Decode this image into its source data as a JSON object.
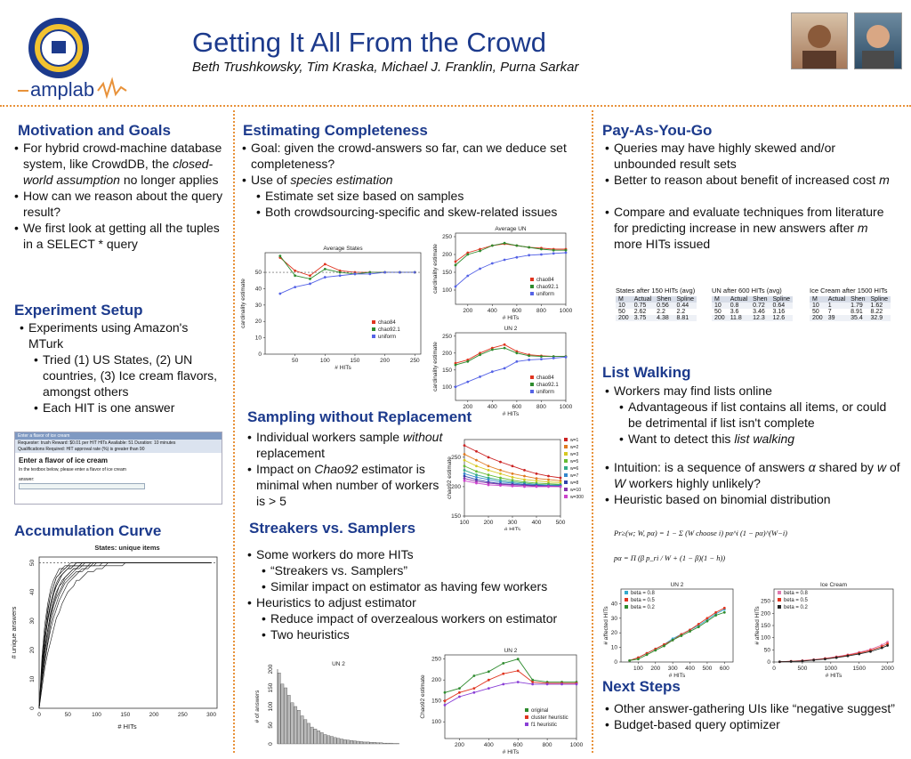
{
  "header": {
    "title": "Getting It All From the Crowd",
    "authors": "Beth Trushkowsky, Tim Kraska, Michael J. Franklin, Purna Sarkar",
    "logo_text": "amplab"
  },
  "motivation": {
    "heading": "Motivation and Goals",
    "bullets": [
      "For hybrid crowd-machine database system, like CrowdDB, the closed-world assumption no longer applies",
      "How can we reason about the query result?",
      "We first look at getting all the tuples in a SELECT * query"
    ]
  },
  "setup": {
    "heading": "Experiment Setup",
    "b1": "Experiments using Amazon's MTurk",
    "b2": "Tried (1) US States, (2) UN countries, (3) Ice cream flavors, amongst others",
    "b3": "Each HIT is one answer",
    "hit": {
      "bar": "Enter a flavor of ice cream",
      "req": "Requester: trush   Reward: $0.01 per HIT   HITs Available: 51   Duration: 10 minutes",
      "qual": "Qualifications Required:   HIT approval rate (%) is greater than 90",
      "title": "Enter a flavor of ice cream",
      "instr": "In the textbox below, please enter a flavor of ice cream",
      "answer_label": "answer:"
    }
  },
  "accum": {
    "heading": "Accumulation Curve",
    "chart_title": "States: unique items",
    "xlabel": "# HITs",
    "ylabel": "# unique answers"
  },
  "completeness": {
    "heading": "Estimating Completeness",
    "b1": "Goal: given the crowd-answers so far, can we deduce set completeness?",
    "b2": "Use of species estimation",
    "b3": "Estimate set size based on samples",
    "b4": "Both crowdsourcing-specific and skew-related issues"
  },
  "sampling": {
    "heading": "Sampling without Replacement",
    "b1": "Individual workers sample without replacement",
    "b2": "Impact on Chao92 estimator is minimal when number of workers is > 5"
  },
  "streakers": {
    "heading": "Streakers vs. Samplers",
    "b1": "Some workers do more HITs",
    "b2": "“Streakers vs. Samplers”",
    "b3": "Similar impact on estimator as having few workers",
    "b4": "Heuristics to adjust estimator",
    "b5": "Reduce impact of overzealous workers on estimator",
    "b6": "Two heuristics"
  },
  "payg": {
    "heading": "Pay-As-You-Go",
    "b1": "Queries may have highly skewed and/or unbounded result sets",
    "b2": "Better to reason about benefit of increased cost m",
    "b3": "Compare and evaluate techniques from literature for predicting increase in new answers after m more HITs issued",
    "tables": [
      {
        "caption": "States after 150 HITs (avg)",
        "cols": [
          "M",
          "Actual",
          "Shen",
          "Spline"
        ],
        "rows": [
          [
            "10",
            "0.75",
            "0.56",
            "0.44"
          ],
          [
            "50",
            "2.62",
            "2.2",
            "2.2"
          ],
          [
            "200",
            "3.75",
            "4.38",
            "8.81"
          ]
        ]
      },
      {
        "caption": "UN after 600 HITs (avg)",
        "cols": [
          "M",
          "Actual",
          "Shen",
          "Spline"
        ],
        "rows": [
          [
            "10",
            "0.8",
            "0.72",
            "0.64"
          ],
          [
            "50",
            "3.6",
            "3.46",
            "3.16"
          ],
          [
            "200",
            "11.8",
            "12.3",
            "12.6"
          ]
        ]
      },
      {
        "caption": "Ice Cream after 1500 HITs",
        "cols": [
          "M",
          "Actual",
          "Shen",
          "Spline"
        ],
        "rows": [
          [
            "10",
            "1",
            "1.79",
            "1.62"
          ],
          [
            "50",
            "7",
            "8.91",
            "8.22"
          ],
          [
            "200",
            "39",
            "35.4",
            "32.9"
          ]
        ]
      }
    ]
  },
  "listwalk": {
    "heading": "List Walking",
    "b1": "Workers may find lists online",
    "b2": "Advantageous if list contains all items, or could be detrimental if list isn't complete",
    "b3": "Want to detect this list walking",
    "b4": "Intuition: is a sequence of answers α shared by w of W workers highly unlikely?",
    "b5": "Heuristic based on binomial distribution",
    "formula1": "Pr≥(w; W, pα) = 1 − Σ (W choose i) pα^i (1 − pα)^(W−i)",
    "formula2": "pα = Π (β p_ri / W + (1 − β)(1 − h))"
  },
  "next": {
    "heading": "Next Steps",
    "b1": "Other answer-gathering UIs like “negative suggest”",
    "b2": "Budget-based query optimizer"
  },
  "chart_data": [
    {
      "type": "line",
      "title": "Average States",
      "xlabel": "# HITs",
      "ylabel": "cardinality estimate",
      "xlim": [
        0,
        260
      ],
      "ylim": [
        0,
        62
      ],
      "xticks": [
        50,
        100,
        150,
        200,
        250
      ],
      "yticks": [
        0,
        10,
        20,
        30,
        40,
        50
      ],
      "x": [
        25,
        50,
        75,
        100,
        125,
        150,
        175,
        200,
        225,
        250
      ],
      "series": [
        {
          "name": "chao84",
          "color": "#e0341f",
          "values": [
            59,
            51,
            48,
            55,
            51,
            50,
            50,
            50,
            50,
            50
          ]
        },
        {
          "name": "chao92.1",
          "color": "#2e8b2e",
          "values": [
            60,
            48,
            46,
            52,
            50,
            49,
            50,
            50,
            50,
            50
          ]
        },
        {
          "name": "uniform",
          "color": "#5563e6",
          "values": [
            37,
            41,
            43,
            47,
            48,
            49,
            49,
            50,
            50,
            50
          ]
        }
      ]
    },
    {
      "type": "line",
      "title": "Average UN",
      "xlabel": "# HITs",
      "ylabel": "cardinality estimate",
      "xlim": [
        100,
        1000
      ],
      "ylim": [
        60,
        260
      ],
      "xticks": [
        200,
        400,
        600,
        800,
        1000
      ],
      "yticks": [
        100,
        150,
        200,
        250
      ],
      "x": [
        100,
        200,
        300,
        400,
        500,
        600,
        700,
        800,
        900,
        1000
      ],
      "series": [
        {
          "name": "chao84",
          "color": "#e0341f",
          "values": [
            180,
            205,
            215,
            225,
            230,
            225,
            220,
            218,
            215,
            215
          ]
        },
        {
          "name": "chao92.1",
          "color": "#2e8b2e",
          "values": [
            170,
            200,
            210,
            225,
            232,
            225,
            220,
            215,
            212,
            212
          ]
        },
        {
          "name": "uniform",
          "color": "#5563e6",
          "values": [
            110,
            140,
            160,
            175,
            185,
            192,
            198,
            200,
            203,
            205
          ]
        }
      ]
    },
    {
      "type": "line",
      "title": "UN 2",
      "xlabel": "# HITs",
      "ylabel": "cardinality estimate",
      "xlim": [
        100,
        1000
      ],
      "ylim": [
        60,
        260
      ],
      "xticks": [
        200,
        400,
        600,
        800,
        1000
      ],
      "yticks": [
        100,
        150,
        200,
        250
      ],
      "x": [
        100,
        200,
        300,
        400,
        500,
        600,
        700,
        800,
        900,
        1000
      ],
      "series": [
        {
          "name": "chao84",
          "color": "#e0341f",
          "values": [
            170,
            180,
            200,
            215,
            225,
            205,
            195,
            192,
            190,
            190
          ]
        },
        {
          "name": "chao92.1",
          "color": "#2e8b2e",
          "values": [
            165,
            175,
            195,
            210,
            215,
            200,
            192,
            190,
            190,
            190
          ]
        },
        {
          "name": "uniform",
          "color": "#5563e6",
          "values": [
            100,
            115,
            130,
            145,
            155,
            175,
            180,
            182,
            185,
            188
          ]
        }
      ]
    },
    {
      "type": "line",
      "title": "",
      "xlabel": "# HITs",
      "ylabel": "chao92 estimate",
      "xlim": [
        100,
        500
      ],
      "ylim": [
        150,
        280
      ],
      "xticks": [
        100,
        200,
        300,
        400,
        500
      ],
      "yticks": [
        150,
        200,
        250
      ],
      "x": [
        100,
        150,
        200,
        250,
        300,
        350,
        400,
        450,
        500
      ],
      "series": [
        {
          "name": "w=1",
          "color": "#cc2222",
          "values": [
            270,
            260,
            250,
            242,
            235,
            228,
            222,
            218,
            215
          ]
        },
        {
          "name": "w=2",
          "color": "#e07a20",
          "values": [
            255,
            245,
            235,
            228,
            222,
            218,
            214,
            212,
            210
          ]
        },
        {
          "name": "w=3",
          "color": "#d6c822",
          "values": [
            245,
            235,
            228,
            222,
            216,
            212,
            210,
            208,
            207
          ]
        },
        {
          "name": "w=5",
          "color": "#66bb33",
          "values": [
            235,
            226,
            220,
            215,
            211,
            208,
            206,
            205,
            204
          ]
        },
        {
          "name": "w=6",
          "color": "#33aa88",
          "values": [
            228,
            220,
            215,
            211,
            208,
            206,
            204,
            203,
            203
          ]
        },
        {
          "name": "w=7",
          "color": "#3388cc",
          "values": [
            222,
            216,
            212,
            208,
            206,
            204,
            203,
            202,
            202
          ]
        },
        {
          "name": "w=8",
          "color": "#3344aa",
          "values": [
            218,
            212,
            208,
            205,
            204,
            203,
            202,
            201,
            201
          ]
        },
        {
          "name": "w=10",
          "color": "#8833aa",
          "values": [
            214,
            209,
            206,
            204,
            203,
            202,
            201,
            201,
            200
          ]
        },
        {
          "name": "w=300",
          "color": "#cc44cc",
          "values": [
            210,
            206,
            203,
            202,
            201,
            200,
            200,
            200,
            200
          ]
        }
      ]
    },
    {
      "type": "bar",
      "title": "UN 2",
      "xlabel": "",
      "ylabel": "# of answers",
      "ylim": [
        0,
        200
      ],
      "yticks": [
        0,
        50,
        100,
        150,
        200
      ],
      "values": [
        190,
        160,
        150,
        130,
        110,
        100,
        90,
        75,
        65,
        55,
        45,
        40,
        35,
        30,
        25,
        22,
        20,
        17,
        15,
        13,
        11,
        10,
        9,
        8,
        7,
        6,
        5,
        5,
        4,
        4,
        3,
        3,
        2,
        2,
        2,
        1,
        1
      ]
    },
    {
      "type": "line",
      "title": "UN 2",
      "xlabel": "# HITs",
      "ylabel": "Chao92 estimate",
      "xlim": [
        100,
        1000
      ],
      "ylim": [
        60,
        260
      ],
      "xticks": [
        200,
        400,
        600,
        800,
        1000
      ],
      "yticks": [
        100,
        150,
        200,
        250
      ],
      "x": [
        100,
        200,
        300,
        400,
        500,
        600,
        700,
        800,
        900,
        1000
      ],
      "series": [
        {
          "name": "original",
          "color": "#2e8b2e",
          "values": [
            170,
            180,
            210,
            220,
            240,
            250,
            200,
            195,
            195,
            195
          ]
        },
        {
          "name": "cluster heuristic",
          "color": "#e0341f",
          "values": [
            150,
            170,
            180,
            200,
            215,
            222,
            195,
            192,
            192,
            192
          ]
        },
        {
          "name": "f1 heuristic",
          "color": "#8a3fd6",
          "values": [
            140,
            160,
            170,
            180,
            190,
            195,
            190,
            190,
            190,
            190
          ]
        }
      ]
    },
    {
      "type": "line",
      "title": "UN 2",
      "xlabel": "# HITs",
      "ylabel": "# affected HITs",
      "xlim": [
        0,
        650
      ],
      "ylim": [
        0,
        50
      ],
      "xticks": [
        100,
        200,
        300,
        400,
        500,
        600
      ],
      "yticks": [
        0,
        10,
        20,
        30,
        40
      ],
      "x": [
        50,
        100,
        150,
        200,
        250,
        300,
        350,
        400,
        450,
        500,
        550,
        600
      ],
      "series": [
        {
          "name": "beta = 0.8",
          "color": "#33aacc",
          "values": [
            1,
            3,
            6,
            9,
            12,
            16,
            19,
            22,
            25,
            29,
            33,
            36
          ]
        },
        {
          "name": "beta = 0.5",
          "color": "#e0341f",
          "values": [
            1,
            3,
            6,
            9,
            12,
            15,
            19,
            22,
            26,
            30,
            34,
            37
          ]
        },
        {
          "name": "beta = 0.2",
          "color": "#2e8b2e",
          "values": [
            1,
            2,
            5,
            8,
            11,
            15,
            18,
            21,
            24,
            28,
            32,
            34
          ]
        }
      ]
    },
    {
      "type": "line",
      "title": "Ice Cream",
      "xlabel": "# HITs",
      "ylabel": "# affected HITs",
      "xlim": [
        0,
        2100
      ],
      "ylim": [
        0,
        300
      ],
      "xticks": [
        0,
        500,
        1000,
        1500,
        2000
      ],
      "yticks": [
        0,
        50,
        100,
        150,
        200,
        250
      ],
      "x": [
        100,
        300,
        500,
        700,
        900,
        1100,
        1300,
        1500,
        1700,
        1900,
        2000
      ],
      "series": [
        {
          "name": "beta = 0.8",
          "color": "#e07ab0",
          "values": [
            1,
            3,
            6,
            10,
            15,
            22,
            30,
            40,
            52,
            70,
            82
          ]
        },
        {
          "name": "beta = 0.5",
          "color": "#e0341f",
          "values": [
            1,
            3,
            5,
            9,
            14,
            20,
            28,
            37,
            48,
            64,
            75
          ]
        },
        {
          "name": "beta = 0.2",
          "color": "#222222",
          "values": [
            1,
            2,
            4,
            8,
            12,
            18,
            25,
            33,
            43,
            58,
            68
          ]
        }
      ]
    }
  ]
}
